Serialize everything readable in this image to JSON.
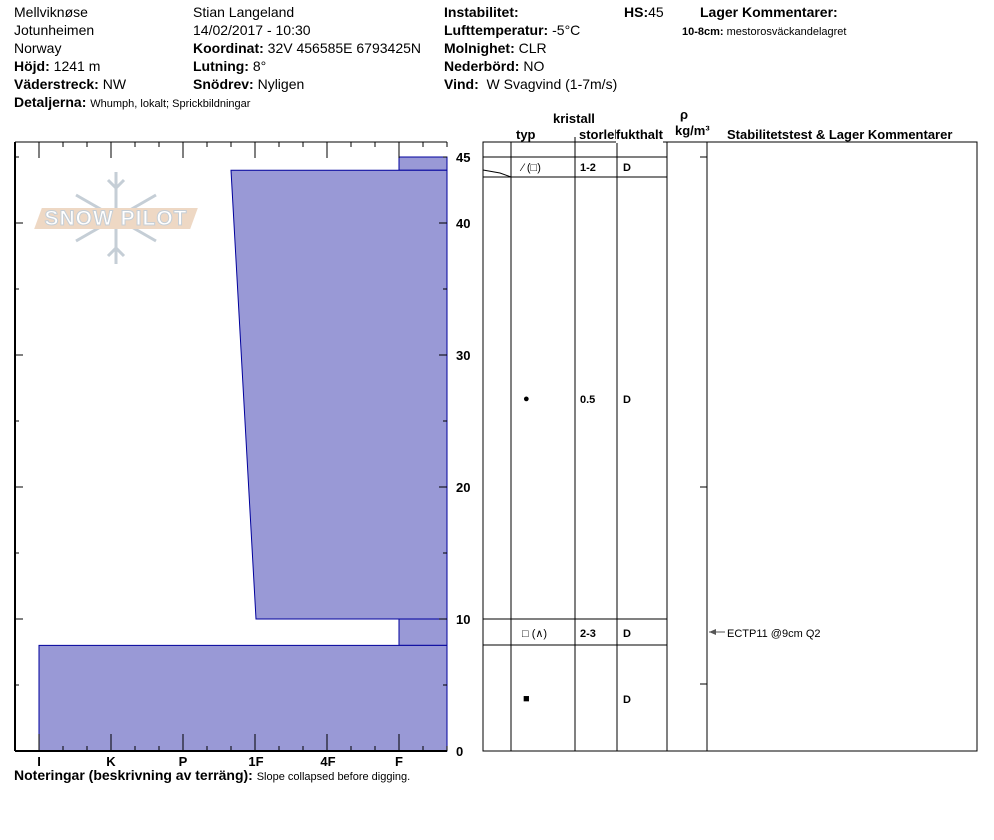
{
  "header": {
    "location": "Mellviknøse",
    "region": "Jotunheimen",
    "country": "Norway",
    "elevation_label": "Höjd:",
    "elevation": "1241 m",
    "aspect_label": "Väderstreck:",
    "aspect": "NW",
    "details_label": "Detaljerna:",
    "details": "Whumph, lokalt; Sprickbildningar",
    "observer": "Stian Langeland",
    "datetime": "14/02/2017 - 10:30",
    "coord_label": "Koordinat:",
    "coord": "32V 456585E 6793425N",
    "slope_label": "Lutning:",
    "slope": "8°",
    "drift_label": "Snödrev:",
    "drift": "Nyligen",
    "instability_label": "Instabilitet:",
    "airtemp_label": "Lufttemperatur:",
    "airtemp": "-5°C",
    "sky_label": "Molnighet:",
    "sky": "CLR",
    "precip_label": "Nederbörd:",
    "precip": "NO",
    "wind_label": "Vind:",
    "wind": "W Svagvind (1-7m/s)",
    "hs_label": "HS:",
    "hs": "45",
    "layer_comments_label": "Lager Kommentarer:",
    "layer_comment_range": "10-8cm:",
    "layer_comment": "mestorosväckandelagret"
  },
  "logo": {
    "text": "SNOW PILOT"
  },
  "table_header": {
    "crystal": "kristall",
    "type": "typ",
    "size": "storlek",
    "moisture": "fukthalt",
    "rho": "ρ",
    "density_unit": "kg/m³",
    "comments": "Stabilitetstest & Lager Kommentarer"
  },
  "rows": [
    {
      "type": "⁄ (□)",
      "size": "1-2",
      "moisture": "D"
    },
    {
      "type": "●",
      "size": "0.5",
      "moisture": "D"
    },
    {
      "type": "□ (∧)",
      "size": "2-3",
      "moisture": "D"
    },
    {
      "type": "■",
      "size": "",
      "moisture": "D"
    }
  ],
  "stability_test": "ECTP11 @9cm  Q2",
  "notes_label": "Noteringar (beskrivning av terräng):",
  "notes": "Slope collapsed before digging.",
  "chart_data": {
    "type": "area",
    "x_ticks": [
      "I",
      "K",
      "P",
      "1F",
      "4F",
      "F"
    ],
    "y_ticks": [
      0,
      10,
      20,
      30,
      40,
      45
    ],
    "ylim": [
      0,
      45
    ],
    "fill_color": "#9999d6",
    "edge_color": "#00009c",
    "layers": [
      {
        "top": 45,
        "bottom": 44,
        "hardness_top": "F",
        "hardness_bottom": "F"
      },
      {
        "top": 44,
        "bottom": 10,
        "hardness_top": "4F-",
        "hardness_bottom": "1F"
      },
      {
        "top": 10,
        "bottom": 8,
        "hardness_top": "F",
        "hardness_bottom": "F"
      },
      {
        "top": 8,
        "bottom": 0,
        "hardness_top": "I",
        "hardness_bottom": "I"
      }
    ]
  }
}
